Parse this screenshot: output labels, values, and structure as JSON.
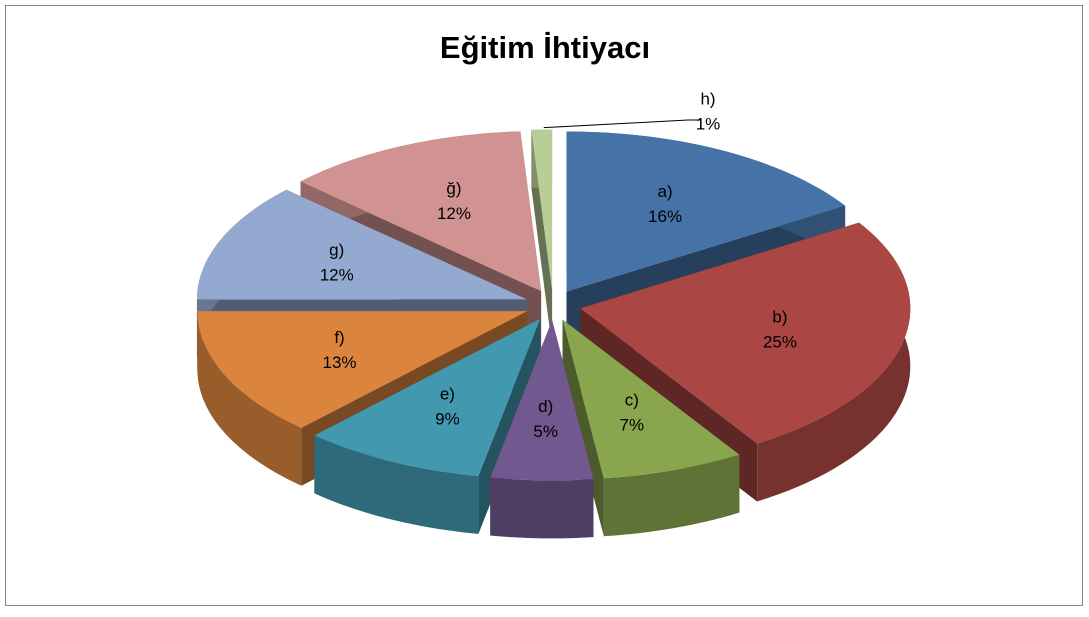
{
  "chart_data": {
    "type": "pie3d",
    "title": "Eğitim İhtiyacı",
    "categories": [
      "a)",
      "b)",
      "c)",
      "d)",
      "e)",
      "f)",
      "g)",
      "ğ)",
      "h)"
    ],
    "values": [
      16,
      25,
      7,
      5,
      9,
      13,
      12,
      12,
      1
    ],
    "value_labels": [
      "16%",
      "25%",
      "7%",
      "5%",
      "9%",
      "13%",
      "12%",
      "12%",
      "1%"
    ],
    "colors": [
      "#4572a7",
      "#aa4643",
      "#89a54e",
      "#71588f",
      "#4198af",
      "#db843d",
      "#93a9cf",
      "#d19392",
      "#b9cd96"
    ]
  }
}
